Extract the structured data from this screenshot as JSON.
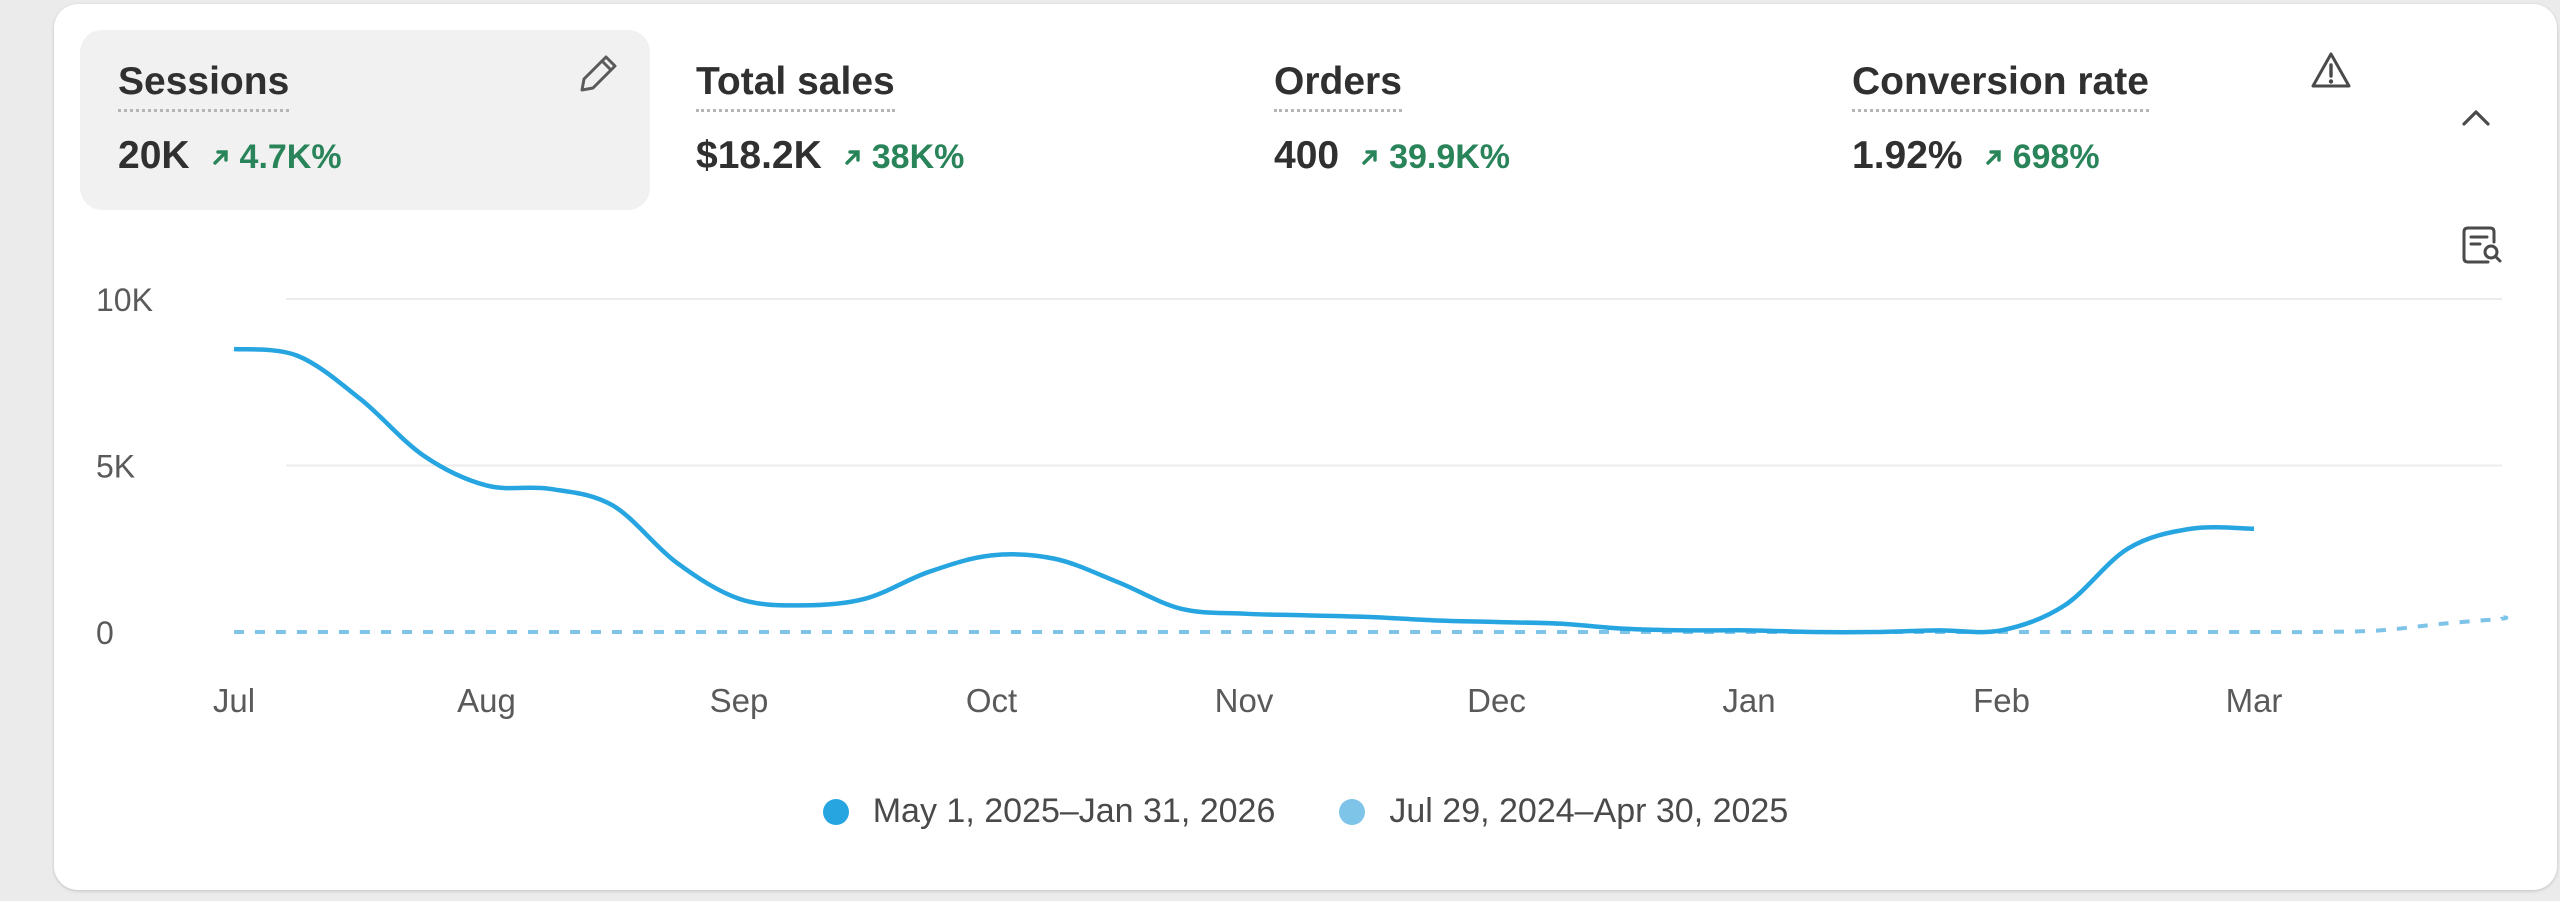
{
  "metrics": [
    {
      "label": "Sessions",
      "value": "20K",
      "change": "4.7K%"
    },
    {
      "label": "Total sales",
      "value": "$18.2K",
      "change": "38K%"
    },
    {
      "label": "Orders",
      "value": "400",
      "change": "39.9K%"
    },
    {
      "label": "Conversion rate",
      "value": "1.92%",
      "change": "698%"
    }
  ],
  "colors": {
    "positive": "#29845a",
    "current_series": "#26a5e0",
    "previous_series": "#7ec3e8",
    "active_tile": "#f1f1f1"
  },
  "icons": [
    "pencil-icon",
    "warning-icon",
    "chevron-up-icon",
    "data-search-icon",
    "arrow-up-right-icon"
  ],
  "chart_data": {
    "type": "line",
    "categories": [
      "Jul",
      "Aug",
      "Sep",
      "Oct",
      "Nov",
      "Dec",
      "Jan",
      "Feb",
      "Mar"
    ],
    "y_ticks": [
      "10K",
      "5K",
      "0"
    ],
    "ylim": [
      0,
      10000
    ],
    "grid": true,
    "legend_position": "bottom-center",
    "series": [
      {
        "name": "May 1, 2025–Jan 31, 2026",
        "style": "solid",
        "x": [
          0,
          0.25,
          0.5,
          0.75,
          1,
          1.25,
          1.5,
          1.75,
          2,
          2.25,
          2.5,
          2.75,
          3,
          3.25,
          3.5,
          3.75,
          4,
          4.25,
          4.5,
          4.75,
          5,
          5.25,
          5.5,
          5.75,
          6,
          6.25,
          6.5,
          6.75,
          7,
          7.25,
          7.5,
          7.75,
          8
        ],
        "values": [
          8500,
          8300,
          7000,
          5300,
          4400,
          4300,
          3800,
          2100,
          1000,
          800,
          1000,
          1800,
          2300,
          2200,
          1500,
          700,
          550,
          500,
          450,
          350,
          300,
          250,
          100,
          50,
          50,
          0,
          0,
          50,
          50,
          800,
          2500,
          3100,
          3100
        ]
      },
      {
        "name": "Jul 29, 2024–Apr 30, 2025",
        "style": "dashed",
        "x": [
          0,
          1,
          2,
          3,
          4,
          5,
          6,
          7,
          8,
          8.25,
          8.5,
          8.75,
          9,
          9.25
        ],
        "values": [
          0,
          0,
          0,
          0,
          0,
          0,
          0,
          0,
          0,
          0,
          50,
          250,
          400,
          450
        ]
      }
    ]
  }
}
